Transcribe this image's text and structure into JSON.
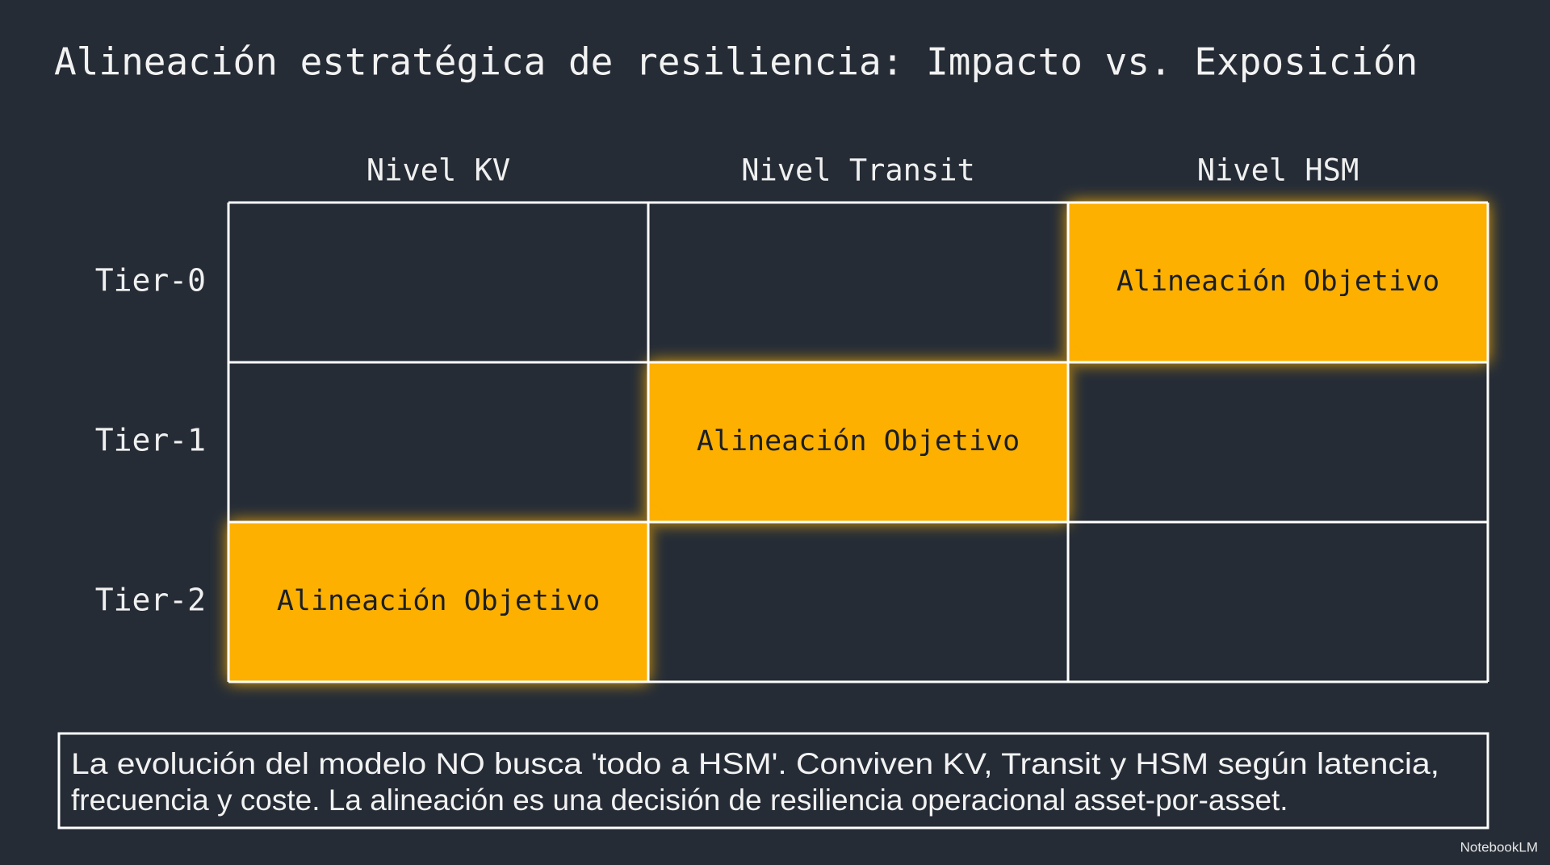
{
  "title": "Alineación estratégica de resiliencia: Impacto vs. Exposición",
  "matrix": {
    "columns": [
      "Nivel KV",
      "Nivel Transit",
      "Nivel HSM"
    ],
    "rows": [
      {
        "label": "Tier-0",
        "cells": [
          null,
          null,
          "Alineación Objetivo"
        ]
      },
      {
        "label": "Tier-1",
        "cells": [
          null,
          "Alineación Objetivo",
          null
        ]
      },
      {
        "label": "Tier-2",
        "cells": [
          "Alineación Objetivo",
          null,
          null
        ]
      }
    ]
  },
  "note": {
    "lines": [
      "La evolución del modelo NO busca 'todo a HSM'. Conviven KV, Transit y HSM según latencia,",
      "frecuencia y coste. La alineación es una decisión de resiliencia operacional asset-por-asset."
    ]
  },
  "watermark": "NotebookLM"
}
